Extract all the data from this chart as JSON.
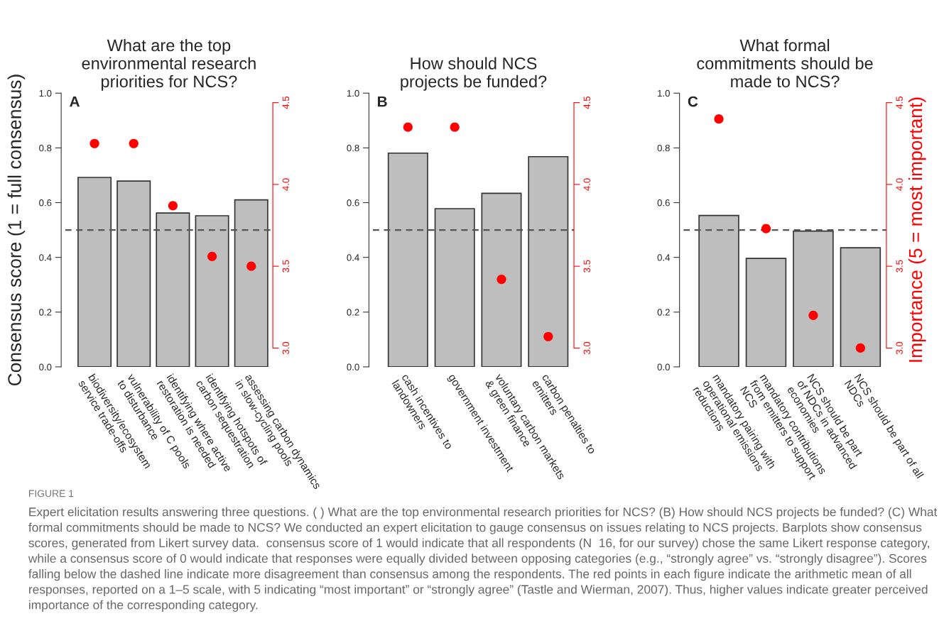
{
  "chart_data": [
    {
      "type": "bar",
      "title": "What are the top\nenvironmental research\npriorities for NCS?",
      "ylabel": "Consensus score (1 = full consensus)",
      "categories": [
        "biodiversity/ecosystem\nservice trade-offs",
        "vulnerability of C pools\nto disturbance",
        "identifying where active\nrestoration is needed",
        "identifying hotspots of\ncarbon sequestration",
        "assessing carbon dynamics\nin slow-cycling pools"
      ],
      "series": [
        {
          "type": "bar",
          "color": "#bebebe",
          "values": [
            0.692,
            0.679,
            0.562,
            0.552,
            0.61
          ]
        },
        {
          "type": "scatter",
          "axis": "y2",
          "color": "#ff0000",
          "values": [
            4.25,
            4.25,
            3.87,
            3.56,
            3.5
          ]
        }
      ],
      "ylim": [
        0,
        1.0
      ],
      "yticks": [
        {
          "value": 0,
          "label": "0.0"
        },
        {
          "value": 0.2,
          "label": "0.2"
        },
        {
          "value": 0.4,
          "label": "0.4"
        },
        {
          "value": 0.6,
          "label": "0.6"
        },
        {
          "value": 0.8,
          "label": "0.8"
        },
        {
          "value": 1.0,
          "label": "1.0"
        }
      ],
      "y2lim": [
        2.885,
        4.558
      ],
      "y2ticks": [
        {
          "value": 3,
          "label": "3.0"
        },
        {
          "value": 3.5,
          "label": "3.5"
        },
        {
          "value": 4,
          "label": "4.0"
        },
        {
          "value": 4.5,
          "label": "4.5"
        }
      ],
      "ref_lines": [
        {
          "axis": "y",
          "value": 0.5,
          "color": "#555555",
          "line_style": "dashed"
        }
      ],
      "marker": "circle",
      "grid": false,
      "legend": false,
      "annotations": [
        "A",
        "FIGURE 1",
        "Expert elicitation results answering three questions. ( ) What are the top environmental research priorities for NCS? (B) How should NCS projects be funded? (C) What formal commitments should be made to NCS? We conducted an expert elicitation to gauge consensus on issues relating to NCS projects. Barplots show consensus scores, generated from Likert survey data.  consensus score of 1 would indicate that all respondents (N  16, for our survey) chose the same Likert response category, while a consensus score of 0 would indicate that responses were equally divided between opposing categories (e.g., “strongly agree” vs. “strongly disagree”). Scores falling below the dashed line indicate more disagreement than consensus among the respondents. The red points in each figure indicate the arithmetic mean of all responses, reported on a 1–5 scale, with 5 indicating “most important” or “strongly agree” (Tastle and Wierman, 2007). Thus, higher values indicate greater perceived importance of the corresponding category."
      ]
    },
    {
      "type": "bar",
      "title": "How should NCS\nprojects be funded?",
      "categories": [
        "cash incentives to\nlandowners",
        "government investment",
        "voluntary carbon markets\n& green finance",
        "carbon penalties to\nemitters"
      ],
      "series": [
        {
          "type": "bar",
          "color": "#bebebe",
          "values": [
            0.781,
            0.578,
            0.634,
            0.768
          ]
        },
        {
          "type": "scatter",
          "axis": "y2",
          "color": "#ff0000",
          "values": [
            4.35,
            4.35,
            3.42,
            3.07
          ]
        }
      ],
      "ylim": [
        0,
        1.0
      ],
      "yticks": [
        {
          "value": 0,
          "label": "0.0"
        },
        {
          "value": 0.2,
          "label": "0.2"
        },
        {
          "value": 0.4,
          "label": "0.4"
        },
        {
          "value": 0.6,
          "label": "0.6"
        },
        {
          "value": 0.8,
          "label": "0.8"
        },
        {
          "value": 1.0,
          "label": "1.0"
        }
      ],
      "y2lim": [
        2.885,
        4.558
      ],
      "y2ticks": [
        {
          "value": 3,
          "label": "3.0"
        },
        {
          "value": 3.5,
          "label": "3.5"
        },
        {
          "value": 4,
          "label": "4.0"
        },
        {
          "value": 4.5,
          "label": "4.5"
        }
      ],
      "ref_lines": [
        {
          "axis": "y",
          "value": 0.5,
          "color": "#555555",
          "line_style": "dashed"
        }
      ],
      "marker": "circle",
      "grid": false,
      "legend": false,
      "annotations": [
        "B"
      ]
    },
    {
      "type": "bar",
      "title": "What formal\ncommitments should be\nmade to NCS?",
      "y2label": "Importance (5 = most important)",
      "categories": [
        "mandatory pairing with\noperational emissions\nreductions",
        "mandatory contributions\nfrom emitters to support\nNCS",
        "NCS should be part\nof NDCs in advanced\neconomies",
        "NCS should be part of all\nNDCs"
      ],
      "series": [
        {
          "type": "bar",
          "color": "#bebebe",
          "values": [
            0.553,
            0.396,
            0.496,
            0.435
          ]
        },
        {
          "type": "scatter",
          "axis": "y2",
          "color": "#ff0000",
          "values": [
            4.4,
            3.73,
            3.2,
            3.0
          ]
        }
      ],
      "ylim": [
        0,
        1.0
      ],
      "yticks": [
        {
          "value": 0,
          "label": "0.0"
        },
        {
          "value": 0.2,
          "label": "0.2"
        },
        {
          "value": 0.4,
          "label": "0.4"
        },
        {
          "value": 0.6,
          "label": "0.6"
        },
        {
          "value": 0.8,
          "label": "0.8"
        },
        {
          "value": 1.0,
          "label": "1.0"
        }
      ],
      "y2lim": [
        2.885,
        4.558
      ],
      "y2ticks": [
        {
          "value": 3,
          "label": "3.0"
        },
        {
          "value": 3.5,
          "label": "3.5"
        },
        {
          "value": 4,
          "label": "4.0"
        },
        {
          "value": 4.5,
          "label": "4.5"
        }
      ],
      "ref_lines": [
        {
          "axis": "y",
          "value": 0.5,
          "color": "#555555",
          "line_style": "dashed"
        }
      ],
      "marker": "circle",
      "grid": false,
      "legend": false,
      "annotations": [
        "C"
      ]
    }
  ]
}
